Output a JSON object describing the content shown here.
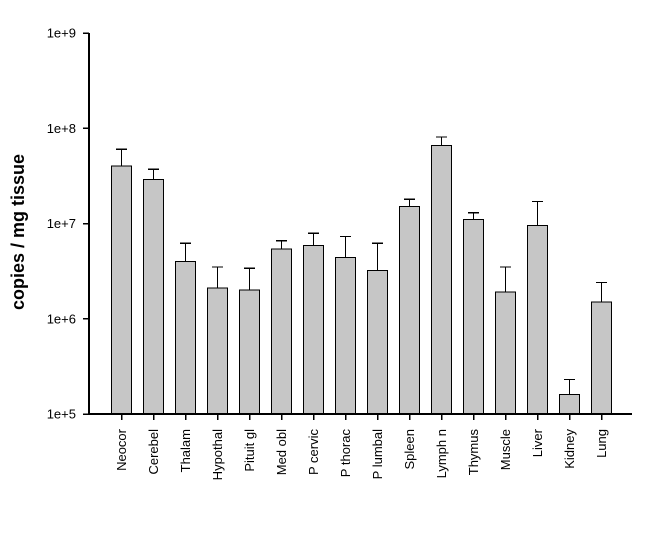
{
  "chart_data": {
    "type": "bar",
    "title": "",
    "xlabel": "",
    "ylabel": "copies / mg tissue",
    "y_scale": "log",
    "ylim": [
      100000.0,
      1000000000.0
    ],
    "grid": false,
    "legend": false,
    "bar_color": "#c6c6c6",
    "bar_border_color": "#000000",
    "axis_color": "#000000",
    "background_color": "#ffffff",
    "error_bar_direction": "upper-only",
    "categories": [
      "Neocor",
      "Cerebel",
      "Thalam",
      "Hypothal",
      "Pituit gl",
      "Med obl",
      "P cervic",
      "P thorac",
      "P lumbal",
      "Spleen",
      "Lymph n",
      "Thymus",
      "Muscle",
      "Liver",
      "Kidney",
      "Lung"
    ],
    "values": [
      40000000.0,
      29000000.0,
      4000000.0,
      2100000.0,
      2000000.0,
      5400000.0,
      5900000.0,
      4400000.0,
      3200000.0,
      15000000.0,
      66000000.0,
      11000000.0,
      1900000.0,
      9500000.0,
      160000.0,
      1500000.0
    ],
    "error_high": [
      60000000.0,
      37000000.0,
      6200000.0,
      3500000.0,
      3400000.0,
      6600000.0,
      7900000.0,
      7300000.0,
      6200000.0,
      18000000.0,
      81000000.0,
      13000000.0,
      3500000.0,
      17000000.0,
      230000.0,
      2400000.0
    ],
    "yticks": [
      {
        "value": 100000.0,
        "label": "1e+5"
      },
      {
        "value": 1000000.0,
        "label": "1e+6"
      },
      {
        "value": 10000000.0,
        "label": "1e+7"
      },
      {
        "value": 100000000.0,
        "label": "1e+8"
      },
      {
        "value": 1000000000.0,
        "label": "1e+9"
      }
    ]
  }
}
